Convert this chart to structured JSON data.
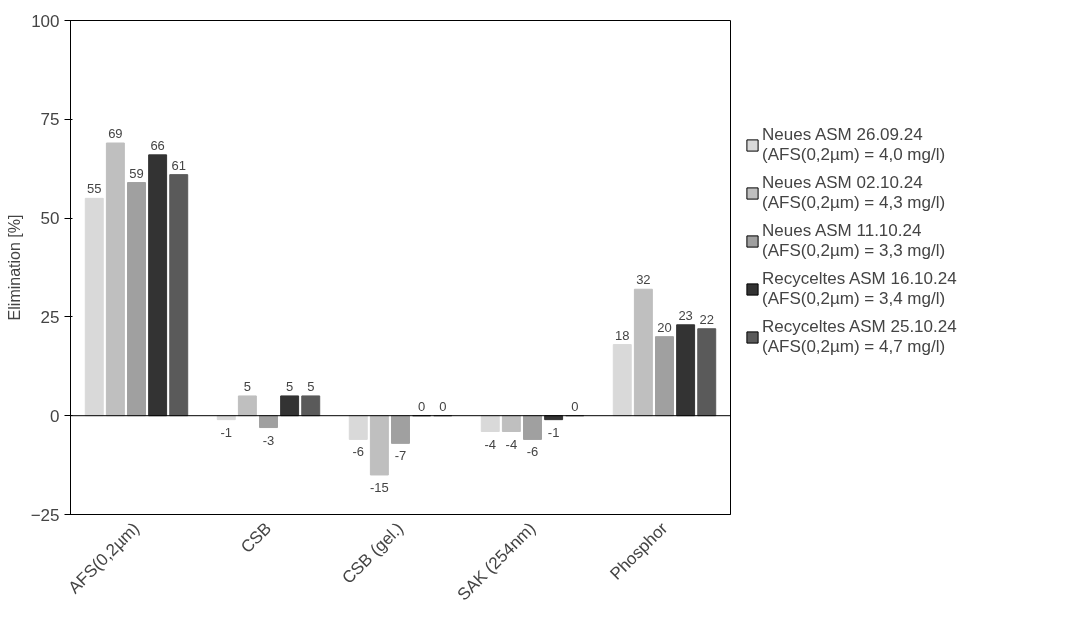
{
  "chart_data": {
    "type": "bar",
    "ylabel": "Elimination [%]",
    "categories": [
      "AFS(0,2µm)",
      "CSB",
      "CSB (gel.)",
      "SAK (254nm)",
      "Phosphor"
    ],
    "series": [
      {
        "name": "Neues ASM 26.09.24\n(AFS(0,2µm) = 4,0 mg/l)",
        "color": "#d9d9d9",
        "values": [
          55,
          -1,
          -6,
          -4,
          18
        ]
      },
      {
        "name": "Neues ASM 02.10.24\n(AFS(0,2µm) = 4,3 mg/l)",
        "color": "#bfbfbf",
        "values": [
          69,
          5,
          -15,
          -4,
          32
        ]
      },
      {
        "name": "Neues ASM 11.10.24\n(AFS(0,2µm) = 3,3 mg/l)",
        "color": "#a0a0a0",
        "values": [
          59,
          -3,
          -7,
          -6,
          20
        ]
      },
      {
        "name": "Recyceltes ASM 16.10.24\n(AFS(0,2µm) = 3,4 mg/l)",
        "color": "#333333",
        "values": [
          66,
          5,
          0,
          -1,
          23
        ]
      },
      {
        "name": "Recyceltes ASM 25.10.24\n(AFS(0,2µm) = 4,7 mg/l)",
        "color": "#5a5a5a",
        "values": [
          61,
          5,
          0,
          0,
          22
        ]
      }
    ],
    "ylim": [
      -25,
      100
    ],
    "yticks": [
      -25,
      0,
      25,
      50,
      75,
      100
    ],
    "data_labels": true,
    "legend": "right"
  }
}
